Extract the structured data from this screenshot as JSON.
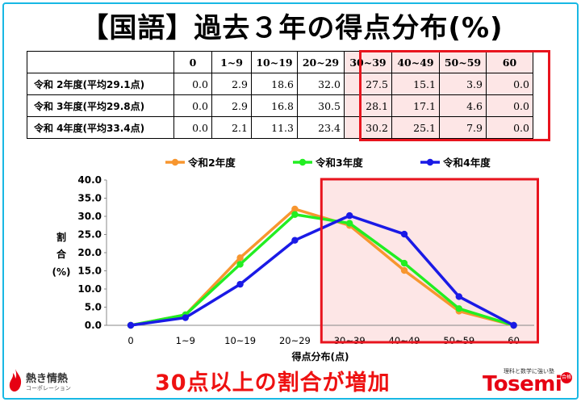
{
  "title": "【国語】過去３年の得点分布(%)",
  "table": {
    "headers": [
      "0",
      "1~9",
      "10~19",
      "20~29",
      "30~39",
      "40~49",
      "50~59",
      "60"
    ],
    "rows": [
      {
        "label": "令和 2年度(平均29.1点)",
        "values": [
          "0.0",
          "2.9",
          "18.6",
          "32.0",
          "27.5",
          "15.1",
          "3.9",
          "0.0"
        ]
      },
      {
        "label": "令和 3年度(平均29.8点)",
        "values": [
          "0.0",
          "2.9",
          "16.8",
          "30.5",
          "28.1",
          "17.1",
          "4.6",
          "0.0"
        ]
      },
      {
        "label": "令和 4年度(平均33.4点)",
        "values": [
          "0.0",
          "2.1",
          "11.3",
          "23.4",
          "30.2",
          "25.1",
          "7.9",
          "0.0"
        ]
      }
    ]
  },
  "chart_data": {
    "type": "line",
    "categories": [
      "0",
      "1~9",
      "10~19",
      "20~29",
      "30~39",
      "40~49",
      "50~59",
      "60"
    ],
    "series": [
      {
        "name": "令和2年度",
        "color": "#f7962f",
        "values": [
          0.0,
          2.9,
          18.6,
          32.0,
          27.5,
          15.1,
          3.9,
          0.0
        ]
      },
      {
        "name": "令和3年度",
        "color": "#22ee22",
        "values": [
          0.0,
          2.9,
          16.8,
          30.5,
          28.1,
          17.1,
          4.6,
          0.0
        ]
      },
      {
        "name": "令和4年度",
        "color": "#1a1ae6",
        "values": [
          0.0,
          2.1,
          11.3,
          23.4,
          30.2,
          25.1,
          7.9,
          0.0
        ]
      }
    ],
    "yticks": [
      "40.0",
      "35.0",
      "30.0",
      "25.0",
      "20.0",
      "15.0",
      "10.0",
      "5.0",
      "0.0"
    ],
    "ylim": [
      0,
      40
    ],
    "ylabel": [
      "割",
      "合",
      "(%)"
    ],
    "xlabel": "得点分布(点)",
    "legend_position": "top",
    "highlight_range": [
      "30~39",
      "60"
    ],
    "highlight_color": "#e8141e"
  },
  "message": "30点以上の割合が増加",
  "logos": {
    "left_name": "熱き情熱",
    "left_sub": "コーポレーション",
    "right_tag": "理科と数学に強い塾",
    "right_brand": "Tosemi",
    "right_badge": "合格"
  }
}
